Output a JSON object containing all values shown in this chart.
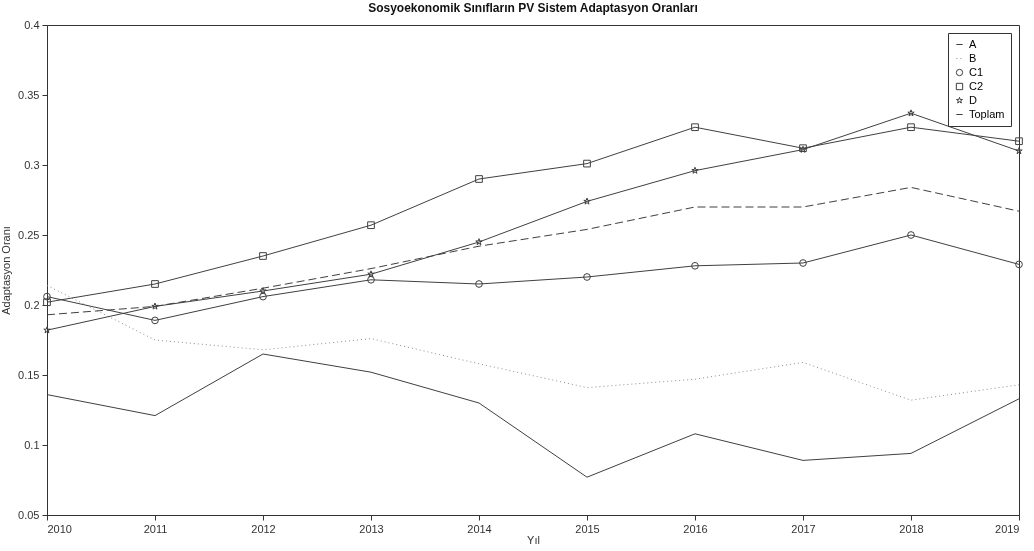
{
  "chart_data": {
    "type": "line",
    "title": "Sosyoekonomik Sınıfların PV Sistem Adaptasyon Oranları",
    "xlabel": "Yıl",
    "ylabel": "Adaptasyon Oranı",
    "x": [
      2010,
      2011,
      2012,
      2013,
      2014,
      2015,
      2016,
      2017,
      2018,
      2019
    ],
    "xlim": [
      2010,
      2019
    ],
    "xticks": [
      2010,
      2011,
      2012,
      2013,
      2014,
      2015,
      2016,
      2017,
      2018,
      2019
    ],
    "ylim": [
      0.05,
      0.4
    ],
    "yticks": [
      0.05,
      0.1,
      0.15,
      0.2,
      0.25,
      0.3,
      0.35,
      0.4
    ],
    "grid": false,
    "legend": "top right",
    "series": [
      {
        "name": "A",
        "color": "#404040",
        "line_style": "solid",
        "marker": "none",
        "values": [
          0.136,
          0.121,
          0.165,
          0.152,
          0.13,
          0.077,
          0.108,
          0.089,
          0.094,
          0.133
        ]
      },
      {
        "name": "B",
        "color": "#8c8c8c",
        "line_style": "dotted",
        "marker": "none",
        "values": [
          0.214,
          0.175,
          0.168,
          0.176,
          0.158,
          0.141,
          0.147,
          0.159,
          0.132,
          0.143
        ]
      },
      {
        "name": "C1",
        "color": "#404040",
        "line_style": "solid",
        "marker": "circle",
        "values": [
          0.206,
          0.189,
          0.206,
          0.218,
          0.215,
          0.22,
          0.228,
          0.23,
          0.25,
          0.229
        ]
      },
      {
        "name": "C2",
        "color": "#404040",
        "line_style": "solid",
        "marker": "square",
        "values": [
          0.202,
          0.215,
          0.235,
          0.257,
          0.29,
          0.301,
          0.327,
          0.312,
          0.327,
          0.317
        ]
      },
      {
        "name": "D",
        "color": "#404040",
        "line_style": "solid",
        "marker": "star",
        "values": [
          0.182,
          0.199,
          0.21,
          0.222,
          0.245,
          0.274,
          0.296,
          0.311,
          0.337,
          0.31
        ]
      },
      {
        "name": "Toplam",
        "color": "#404040",
        "line_style": "dashed",
        "marker": "none",
        "values": [
          0.193,
          0.199,
          0.212,
          0.226,
          0.242,
          0.254,
          0.27,
          0.27,
          0.284,
          0.267
        ]
      }
    ]
  }
}
